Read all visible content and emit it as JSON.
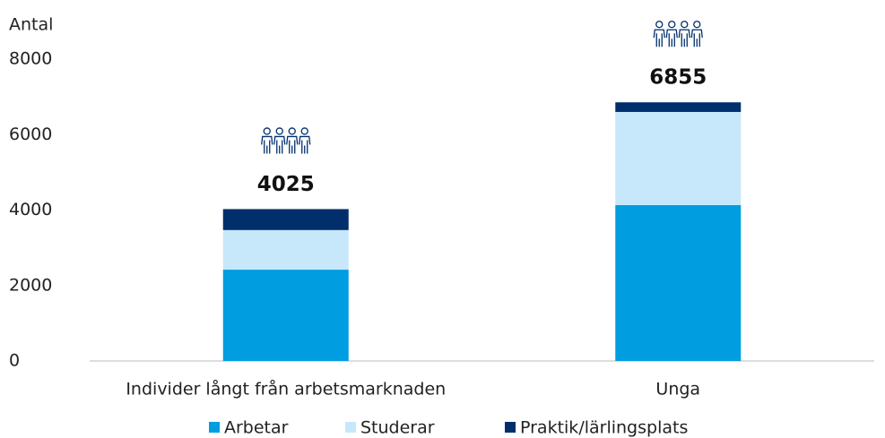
{
  "chart_data": {
    "type": "stacked_bar",
    "y_label": "Antal",
    "categories": [
      "Individer långt från arbetsmarknaden",
      "Unga"
    ],
    "series": [
      {
        "name": "Arbetar",
        "color": "#009de0",
        "values": [
          2420,
          4130
        ]
      },
      {
        "name": "Studerar",
        "color": "#c6e8fa",
        "values": [
          1050,
          2470
        ]
      },
      {
        "name": "Praktik/lärlingsplats",
        "color": "#002f6c",
        "values": [
          555,
          255
        ]
      }
    ],
    "totals": [
      4025,
      6855
    ],
    "ylim": [
      0,
      8000
    ],
    "yticks": [
      0,
      2000,
      4000,
      6000,
      8000
    ],
    "grid": false
  }
}
